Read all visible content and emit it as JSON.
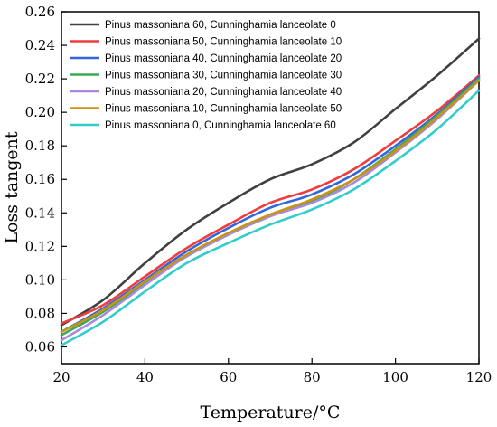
{
  "chart_data": {
    "type": "line",
    "xlabel": "Temperature/°C",
    "ylabel": "Loss tangent",
    "xlim": [
      20,
      120
    ],
    "ylim": [
      0.05,
      0.26
    ],
    "x_ticks": [
      20,
      40,
      60,
      80,
      100,
      120
    ],
    "y_ticks": [
      0.06,
      0.08,
      0.1,
      0.12,
      0.14,
      0.16,
      0.18,
      0.2,
      0.22,
      0.24,
      0.26
    ],
    "legend_position": "top-left",
    "grid": false,
    "series": [
      {
        "name": "Pinus massoniana 60, Cunninghamia lanceolate 0",
        "color": "#404040",
        "x": [
          20,
          30,
          40,
          50,
          60,
          70,
          80,
          90,
          100,
          110,
          120
        ],
        "y": [
          0.073,
          0.088,
          0.11,
          0.13,
          0.146,
          0.16,
          0.169,
          0.182,
          0.202,
          0.222,
          0.244
        ]
      },
      {
        "name": "Pinus massoniana 50, Cunninghamia lanceolate 10",
        "color": "#f03c3c",
        "x": [
          20,
          30,
          40,
          50,
          60,
          70,
          80,
          90,
          100,
          110,
          120
        ],
        "y": [
          0.074,
          0.085,
          0.102,
          0.119,
          0.133,
          0.146,
          0.154,
          0.166,
          0.183,
          0.201,
          0.222
        ]
      },
      {
        "name": "Pinus massoniana 40, Cunninghamia lanceolate 20",
        "color": "#3366dd",
        "x": [
          20,
          30,
          40,
          50,
          60,
          70,
          80,
          90,
          100,
          110,
          120
        ],
        "y": [
          0.069,
          0.083,
          0.1,
          0.117,
          0.131,
          0.143,
          0.151,
          0.163,
          0.18,
          0.199,
          0.221
        ]
      },
      {
        "name": "Pinus massoniana 30, Cunninghamia lanceolate 30",
        "color": "#3aaa5a",
        "x": [
          20,
          30,
          40,
          50,
          60,
          70,
          80,
          90,
          100,
          110,
          120
        ],
        "y": [
          0.067,
          0.081,
          0.098,
          0.114,
          0.127,
          0.138,
          0.147,
          0.16,
          0.178,
          0.198,
          0.22
        ]
      },
      {
        "name": "Pinus massoniana 20, Cunninghamia lanceolate 40",
        "color": "#aa88dd",
        "x": [
          20,
          30,
          40,
          50,
          60,
          70,
          80,
          90,
          100,
          110,
          120
        ],
        "y": [
          0.064,
          0.079,
          0.097,
          0.114,
          0.127,
          0.138,
          0.146,
          0.158,
          0.176,
          0.196,
          0.219
        ]
      },
      {
        "name": "Pinus massoniana 10, Cunninghamia lanceolate 50",
        "color": "#c89414",
        "x": [
          20,
          30,
          40,
          50,
          60,
          70,
          80,
          90,
          100,
          110,
          120
        ],
        "y": [
          0.069,
          0.082,
          0.099,
          0.115,
          0.128,
          0.139,
          0.148,
          0.16,
          0.177,
          0.197,
          0.219
        ]
      },
      {
        "name": "Pinus massoniana 0, Cunninghamia lanceolate 60",
        "color": "#33cccc",
        "x": [
          20,
          30,
          40,
          50,
          60,
          70,
          80,
          90,
          100,
          110,
          120
        ],
        "y": [
          0.061,
          0.075,
          0.093,
          0.11,
          0.122,
          0.133,
          0.142,
          0.154,
          0.171,
          0.19,
          0.213
        ]
      }
    ]
  }
}
